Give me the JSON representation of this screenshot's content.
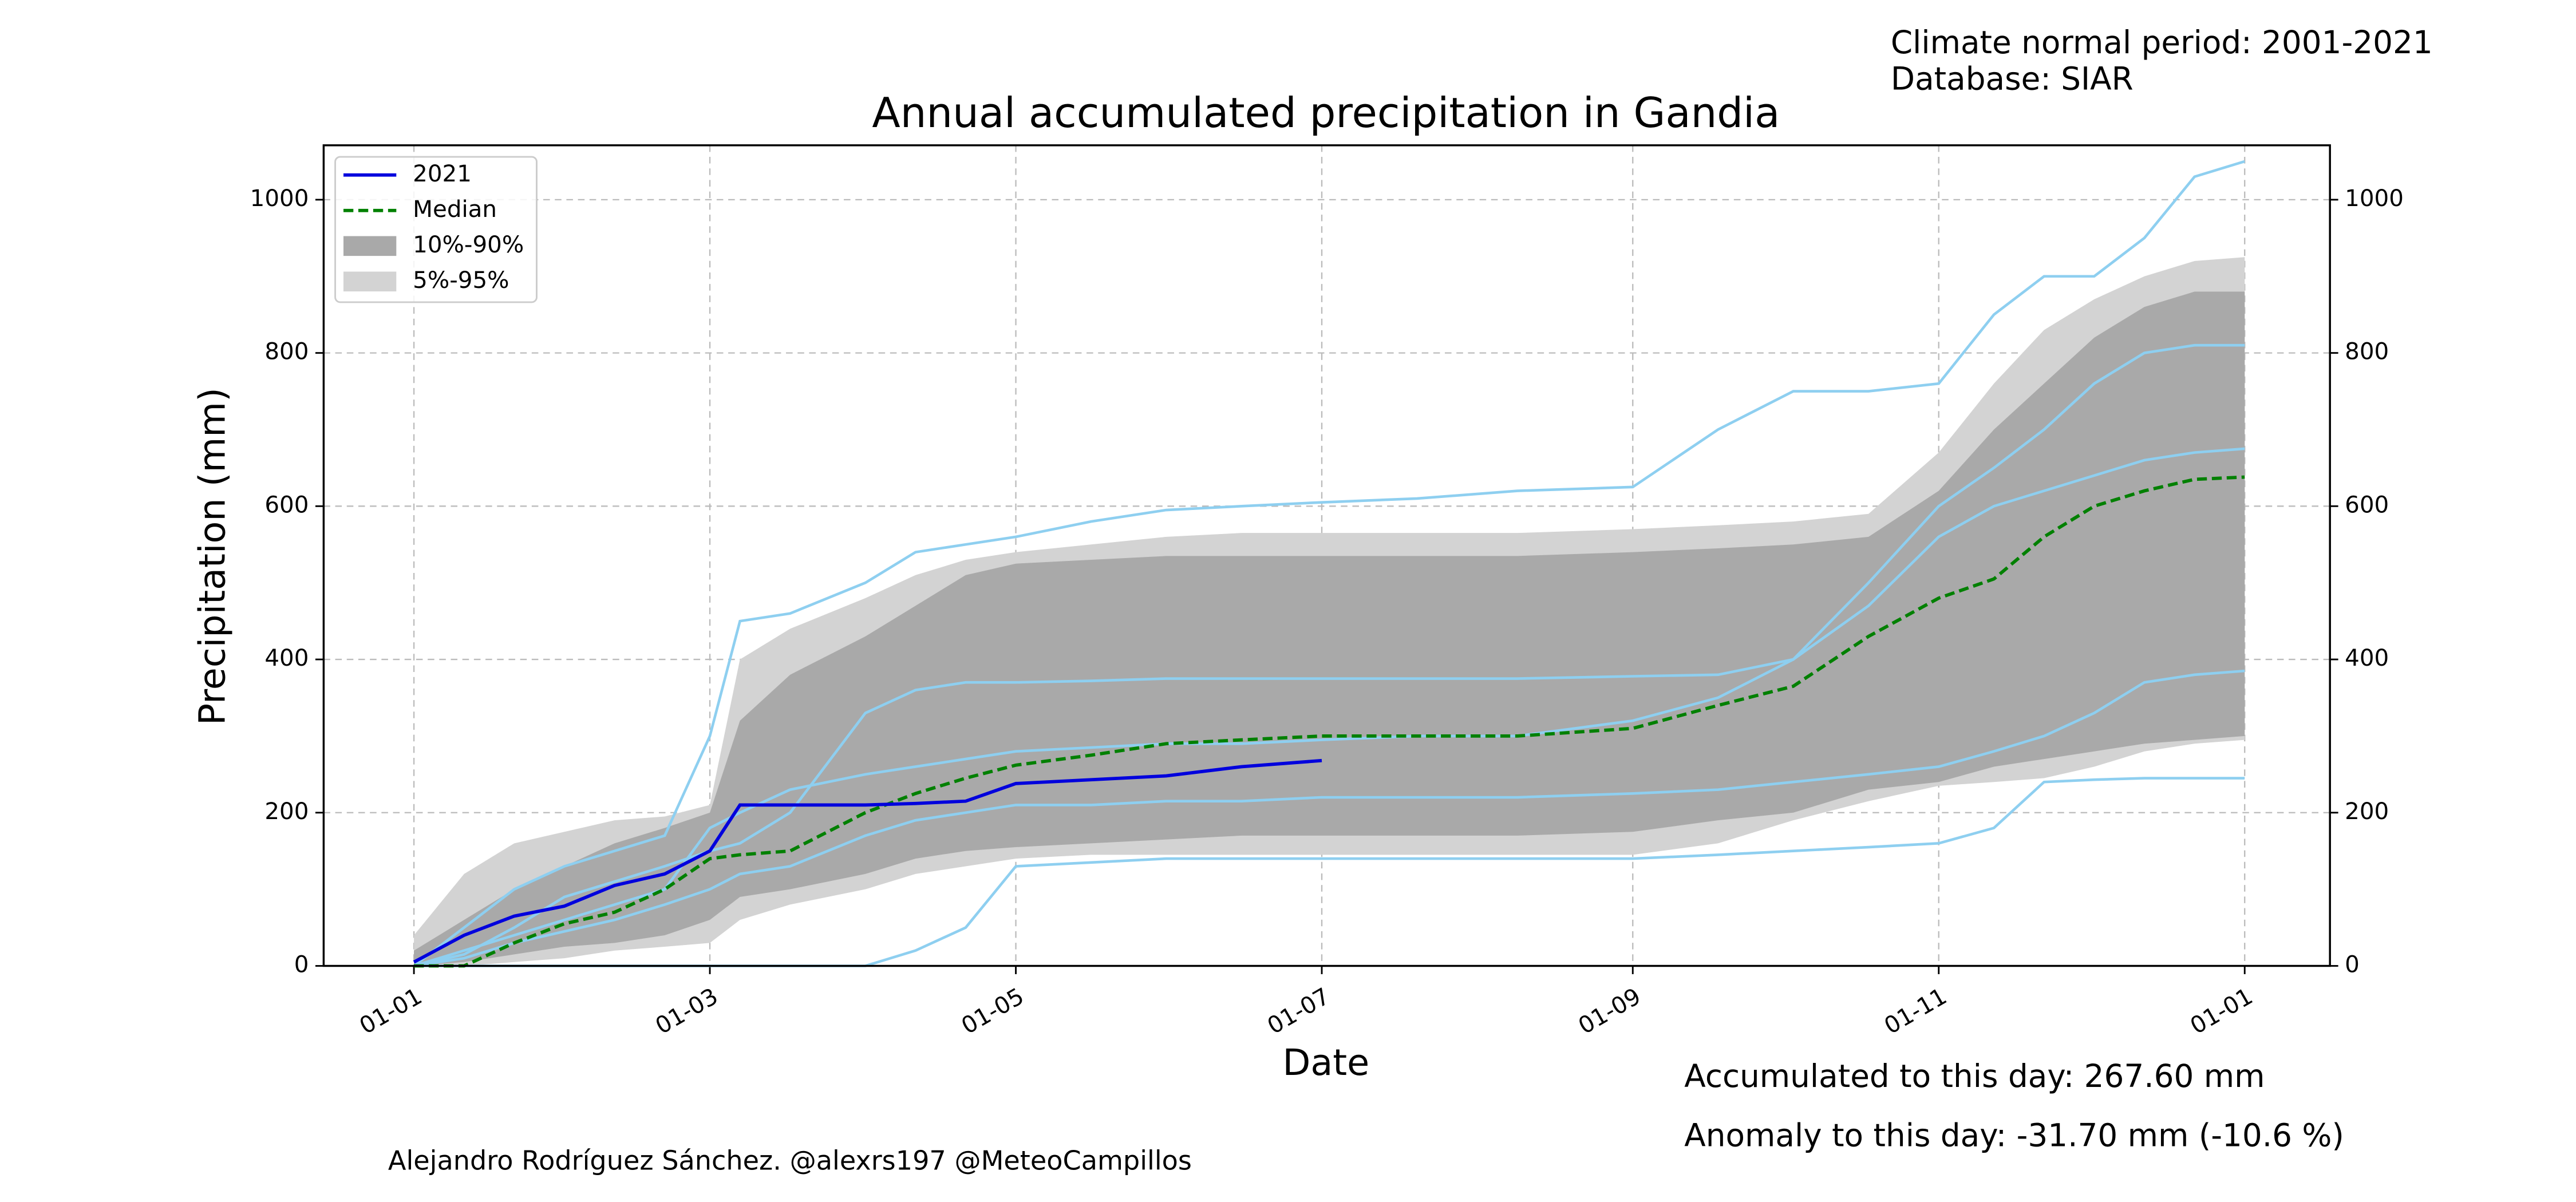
{
  "chart_data": {
    "type": "line",
    "title": "Annual accumulated precipitation in Gandia",
    "notes": [
      "Climate normal period: 2001-2021",
      "Database: SIAR"
    ],
    "xlabel": "Date",
    "ylabel": "Precipitation (mm)",
    "accumulated": "Accumulated to this day: 267.60 mm",
    "anomaly": "Anomaly to this day: -31.70 mm (-10.6 %)",
    "anomaly_color": "#ff0000",
    "credit": "Alejandro Rodríguez Sánchez. @alexrs197 @MeteoCampillos",
    "grid": true,
    "legend": "upper left",
    "xlim": [
      -18,
      382
    ],
    "ylim": [
      0,
      1071
    ],
    "xticks": [
      {
        "value": 0,
        "label": "01-01"
      },
      {
        "value": 59,
        "label": "01-03"
      },
      {
        "value": 120,
        "label": "01-05"
      },
      {
        "value": 181,
        "label": "01-07"
      },
      {
        "value": 243,
        "label": "01-09"
      },
      {
        "value": 304,
        "label": "01-11"
      },
      {
        "value": 365,
        "label": "01-01"
      }
    ],
    "yticks": [
      0,
      200,
      400,
      600,
      800,
      1000
    ],
    "x": [
      0,
      10,
      20,
      30,
      40,
      50,
      59,
      65,
      75,
      90,
      100,
      110,
      120,
      135,
      150,
      165,
      181,
      200,
      220,
      243,
      260,
      275,
      290,
      304,
      315,
      325,
      335,
      345,
      355,
      365
    ],
    "bands": [
      {
        "name": "5%-95%",
        "color": "#d3d3d3",
        "lower": [
          0,
          0,
          5,
          10,
          20,
          25,
          30,
          60,
          80,
          100,
          120,
          130,
          140,
          145,
          145,
          145,
          145,
          145,
          145,
          145,
          160,
          190,
          215,
          235,
          240,
          245,
          260,
          280,
          290,
          295
        ],
        "upper": [
          40,
          120,
          160,
          175,
          190,
          195,
          210,
          400,
          440,
          480,
          510,
          530,
          540,
          550,
          560,
          565,
          565,
          565,
          565,
          570,
          575,
          580,
          590,
          670,
          760,
          830,
          870,
          900,
          920,
          925
        ]
      },
      {
        "name": "10%-90%",
        "color": "#a9a9a9",
        "lower": [
          0,
          5,
          15,
          25,
          30,
          40,
          60,
          90,
          100,
          120,
          140,
          150,
          155,
          160,
          165,
          170,
          170,
          170,
          170,
          175,
          190,
          200,
          230,
          240,
          260,
          270,
          280,
          290,
          295,
          300
        ],
        "upper": [
          20,
          60,
          100,
          130,
          160,
          180,
          200,
          320,
          380,
          430,
          470,
          510,
          525,
          530,
          535,
          535,
          535,
          535,
          535,
          540,
          545,
          550,
          560,
          620,
          700,
          760,
          820,
          860,
          880,
          880
        ]
      }
    ],
    "series": [
      {
        "color": "#8ecff0",
        "values": [
          0,
          50,
          100,
          130,
          150,
          170,
          300,
          450,
          460,
          500,
          540,
          550,
          560,
          580,
          595,
          600,
          605,
          610,
          620,
          625,
          700,
          750,
          750,
          760,
          850,
          900,
          900,
          950,
          1030,
          1050
        ]
      },
      {
        "color": "#8ecff0",
        "values": [
          0,
          0,
          0,
          0,
          0,
          0,
          0,
          0,
          0,
          0,
          20,
          50,
          130,
          135,
          140,
          140,
          140,
          140,
          140,
          140,
          145,
          150,
          155,
          160,
          180,
          240,
          243,
          245,
          245,
          245
        ]
      },
      {
        "color": "#8ecff0",
        "values": [
          0,
          20,
          40,
          60,
          80,
          100,
          180,
          200,
          230,
          250,
          260,
          270,
          280,
          285,
          290,
          290,
          295,
          300,
          300,
          320,
          350,
          400,
          500,
          600,
          650,
          700,
          760,
          800,
          810,
          810
        ]
      },
      {
        "color": "#8ecff0",
        "values": [
          0,
          10,
          30,
          45,
          60,
          80,
          100,
          120,
          130,
          170,
          190,
          200,
          210,
          210,
          215,
          215,
          220,
          220,
          220,
          225,
          230,
          240,
          250,
          260,
          280,
          300,
          330,
          370,
          380,
          385
        ]
      },
      {
        "color": "#8ecff0",
        "values": [
          0,
          15,
          50,
          90,
          110,
          130,
          150,
          160,
          200,
          330,
          360,
          370,
          370,
          372,
          375,
          375,
          375,
          375,
          375,
          378,
          380,
          400,
          470,
          560,
          600,
          620,
          640,
          660,
          670,
          675
        ]
      },
      {
        "name": "Median",
        "color": "#008000",
        "linestyle": "dashed",
        "values": [
          0,
          0,
          30,
          55,
          70,
          100,
          140,
          145,
          150,
          200,
          225,
          245,
          262,
          275,
          290,
          295,
          300,
          300,
          300,
          310,
          340,
          365,
          430,
          480,
          505,
          560,
          600,
          620,
          635,
          638
        ]
      },
      {
        "name": "2021",
        "color": "#0000dd",
        "values": [
          5,
          40,
          65,
          78,
          105,
          120,
          150,
          210,
          210,
          210,
          212,
          215,
          238,
          243,
          248,
          260,
          268,
          null,
          null,
          null,
          null,
          null,
          null,
          null,
          null,
          null,
          null,
          null,
          null,
          null
        ]
      }
    ]
  }
}
